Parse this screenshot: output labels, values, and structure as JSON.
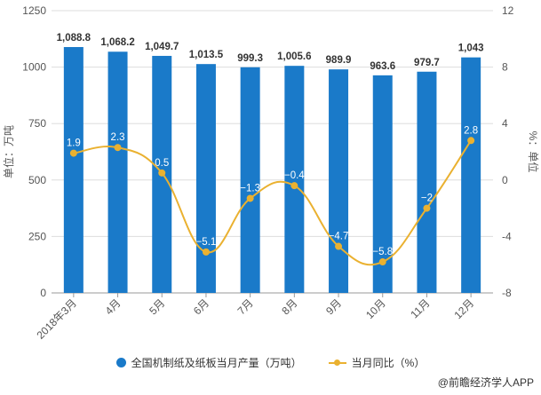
{
  "chart_data": {
    "type": "bar+line",
    "categories": [
      "2018年3月",
      "4月",
      "5月",
      "6月",
      "7月",
      "8月",
      "9月",
      "10月",
      "11月",
      "12月"
    ],
    "series": [
      {
        "name": "全国机制纸及纸板当月产量（万吨）",
        "type": "bar",
        "axis": "left",
        "color": "#1a7ac9",
        "values": [
          1088.8,
          1068.2,
          1049.7,
          1013.5,
          999.3,
          1005.6,
          989.9,
          963.6,
          979.7,
          1043
        ],
        "labels": [
          "1,088.8",
          "1,068.2",
          "1,049.7",
          "1,013.5",
          "999.3",
          "1,005.6",
          "989.9",
          "963.6",
          "979.7",
          "1,043"
        ]
      },
      {
        "name": "当月同比（%）",
        "type": "line",
        "axis": "right",
        "color": "#eab130",
        "values": [
          1.9,
          2.3,
          0.5,
          -5.1,
          -1.3,
          -0.4,
          -4.7,
          -5.8,
          -2,
          2.8
        ],
        "labels": [
          "1.9",
          "2.3",
          "0.5",
          "−5.1",
          "−1.3",
          "−0.4",
          "−4.7",
          "−5.8",
          "−2",
          "2.8"
        ]
      }
    ],
    "ylabel_left": "单位：万吨",
    "ylabel_right": "%：单位",
    "ylim_left": [
      0,
      1250
    ],
    "ylim_right": [
      -8,
      12
    ],
    "yticks_left": [
      "0",
      "250",
      "500",
      "750",
      "1000",
      "1250"
    ],
    "yticks_right": [
      "-8",
      "-4",
      "0",
      "4",
      "8",
      "12"
    ],
    "grid": true,
    "legend_position": "bottom"
  },
  "legend": {
    "bar": "全国机制纸及纸板当月产量（万吨）",
    "line": "当月同比（%）"
  },
  "source": "@前瞻经济学人APP"
}
